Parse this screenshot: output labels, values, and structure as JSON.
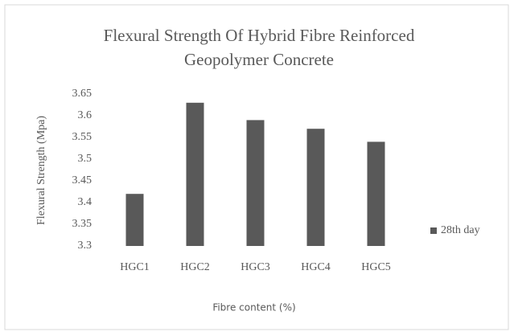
{
  "chart_data": {
    "type": "bar",
    "title": [
      "Flexural Strength Of Hybrid Fibre Reinforced",
      "Geopolymer Concrete"
    ],
    "xlabel": "Fibre content (%)",
    "ylabel": "Flexural Strength (Mpa)",
    "categories": [
      "HGC1",
      "HGC2",
      "HGC3",
      "HGC4",
      "HGC5"
    ],
    "series": [
      {
        "name": "28th day",
        "color": "#595959",
        "values": [
          3.42,
          3.63,
          3.59,
          3.57,
          3.54
        ]
      }
    ],
    "ylim": [
      3.3,
      3.65
    ],
    "yticks": [
      3.3,
      3.35,
      3.4,
      3.45,
      3.5,
      3.55,
      3.6,
      3.65
    ],
    "grid": false,
    "legend": "right"
  }
}
